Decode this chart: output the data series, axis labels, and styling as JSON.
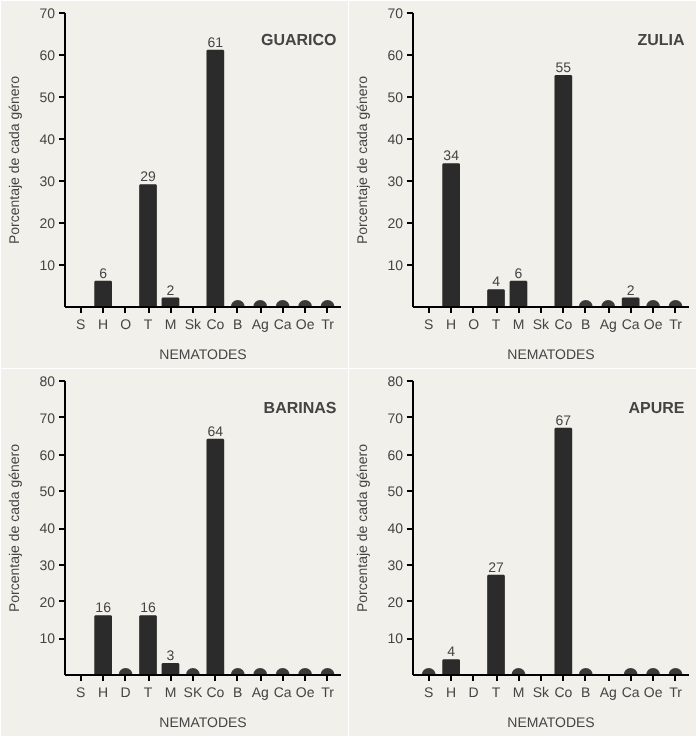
{
  "chart_data": [
    {
      "type": "bar",
      "title": "GUARICO",
      "xlabel": "NEMATODES",
      "ylabel": "Porcentaje de cada género",
      "categories": [
        "S",
        "H",
        "O",
        "T",
        "M",
        "Sk",
        "Co",
        "B",
        "Ag",
        "Ca",
        "Oe",
        "Tr"
      ],
      "ylim": [
        0,
        70
      ],
      "yticks": [
        10,
        20,
        30,
        40,
        50,
        60,
        70
      ],
      "grid": false,
      "series": [
        {
          "color": "#2b2b2b",
          "values": [
            null,
            6,
            null,
            29,
            2,
            null,
            61,
            null,
            null,
            null,
            null,
            null
          ],
          "value_labels": [
            null,
            "6",
            null,
            "29",
            "2",
            null,
            "61",
            null,
            null,
            null,
            null,
            null
          ]
        },
        {
          "type": "scatter",
          "color": "#3a3a3a",
          "marker": "circle",
          "values": [
            null,
            null,
            null,
            null,
            null,
            null,
            null,
            0,
            0,
            0,
            0,
            0
          ]
        }
      ]
    },
    {
      "type": "bar",
      "title": "ZULIA",
      "xlabel": "NEMATODES",
      "ylabel": "Porcentaje de cada género",
      "categories": [
        "S",
        "H",
        "O",
        "T",
        "M",
        "Sk",
        "Co",
        "B",
        "Ag",
        "Ca",
        "Oe",
        "Tr"
      ],
      "ylim": [
        0,
        70
      ],
      "yticks": [
        10,
        20,
        30,
        40,
        50,
        60,
        70
      ],
      "grid": false,
      "series": [
        {
          "color": "#2b2b2b",
          "values": [
            null,
            34,
            null,
            4,
            6,
            null,
            55,
            null,
            null,
            2,
            null,
            null
          ],
          "value_labels": [
            null,
            "34",
            null,
            "4",
            "6",
            null,
            "55",
            null,
            null,
            "2",
            null,
            null
          ]
        },
        {
          "type": "scatter",
          "color": "#3a3a3a",
          "marker": "circle",
          "values": [
            null,
            null,
            null,
            null,
            null,
            null,
            null,
            0,
            0,
            null,
            0,
            0
          ]
        }
      ]
    },
    {
      "type": "bar",
      "title": "BARINAS",
      "xlabel": "NEMATODES",
      "ylabel": "Porcentaje de cada género",
      "categories": [
        "S",
        "H",
        "D",
        "T",
        "M",
        "SK",
        "Co",
        "B",
        "Ag",
        "Ca",
        "Oe",
        "Tr"
      ],
      "ylim": [
        0,
        80
      ],
      "yticks": [
        10,
        20,
        30,
        40,
        50,
        60,
        70,
        80
      ],
      "grid": false,
      "series": [
        {
          "color": "#2b2b2b",
          "values": [
            null,
            16,
            null,
            16,
            3,
            null,
            64,
            null,
            null,
            null,
            null,
            null
          ],
          "value_labels": [
            null,
            "16",
            null,
            "16",
            "3",
            null,
            "64",
            null,
            null,
            null,
            null,
            null
          ]
        },
        {
          "type": "scatter",
          "color": "#3a3a3a",
          "marker": "circle",
          "values": [
            null,
            null,
            0,
            null,
            null,
            0,
            null,
            0,
            0,
            0,
            0,
            0
          ]
        }
      ]
    },
    {
      "type": "bar",
      "title": "APURE",
      "xlabel": "NEMATODES",
      "ylabel": "Porcentaje de cada género",
      "categories": [
        "S",
        "H",
        "D",
        "T",
        "M",
        "Sk",
        "Co",
        "B",
        "Ag",
        "Ca",
        "Oe",
        "Tr"
      ],
      "ylim": [
        0,
        80
      ],
      "yticks": [
        10,
        20,
        30,
        40,
        50,
        60,
        70,
        80
      ],
      "grid": false,
      "series": [
        {
          "color": "#2b2b2b",
          "values": [
            null,
            4,
            null,
            27,
            null,
            null,
            67,
            null,
            null,
            null,
            null,
            null
          ],
          "value_labels": [
            null,
            "4",
            null,
            "27",
            null,
            null,
            "67",
            null,
            null,
            null,
            null,
            null
          ]
        },
        {
          "type": "scatter",
          "color": "#3a3a3a",
          "marker": "circle",
          "values": [
            0,
            null,
            null,
            null,
            0,
            null,
            null,
            0,
            null,
            0,
            0,
            0
          ]
        }
      ]
    }
  ]
}
